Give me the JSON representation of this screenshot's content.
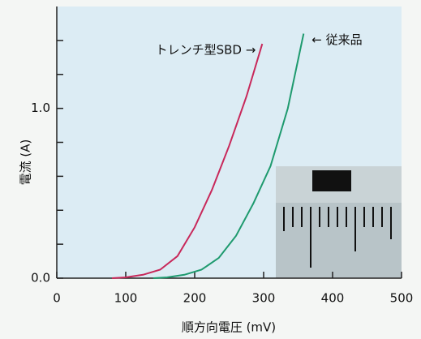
{
  "chart_data": {
    "type": "line",
    "xlabel": "順方向電圧 (mV)",
    "ylabel": "電流 (A)",
    "xlim": [
      0,
      500
    ],
    "xticks": [
      0,
      100,
      200,
      300,
      400,
      500
    ],
    "ylim": [
      0,
      1.6
    ],
    "yticks": [
      {
        "value": 0,
        "label": "0.0"
      },
      {
        "value": 0.2,
        "label": null
      },
      {
        "value": 0.4,
        "label": null
      },
      {
        "value": 0.6,
        "label": null
      },
      {
        "value": 0.8,
        "label": null
      },
      {
        "value": 1.0,
        "label": "1.0"
      },
      {
        "value": 1.2,
        "label": null
      },
      {
        "value": 1.4,
        "label": null
      }
    ],
    "series": [
      {
        "name": "トレンチ型SBD →",
        "color": "#c8285a",
        "x": [
          80,
          100,
          125,
          150,
          175,
          200,
          225,
          250,
          275,
          298
        ],
        "values": [
          0,
          0.005,
          0.02,
          0.05,
          0.13,
          0.3,
          0.52,
          0.78,
          1.07,
          1.38
        ]
      },
      {
        "name": "← 従来品",
        "color": "#1e9a6e",
        "x": [
          140,
          160,
          185,
          210,
          235,
          260,
          285,
          310,
          335,
          358
        ],
        "values": [
          0,
          0.005,
          0.02,
          0.05,
          0.12,
          0.25,
          0.44,
          0.66,
          1.0,
          1.44
        ]
      }
    ]
  }
}
